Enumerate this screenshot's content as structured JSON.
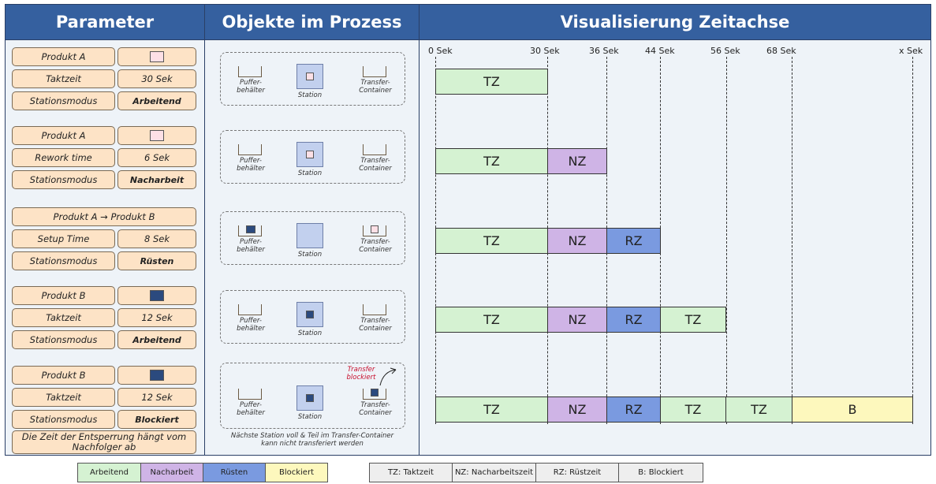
{
  "headers": {
    "parameter": "Parameter",
    "objects": "Objekte im Prozess",
    "timeline": "Visualisierung Zeitachse"
  },
  "parameters": [
    {
      "rows": [
        [
          "Produkt A",
          ""
        ],
        [
          "Taktzeit",
          "30 Sek"
        ],
        [
          "Stationsmodus",
          "Arbeitend"
        ]
      ]
    },
    {
      "rows": [
        [
          "Produkt A",
          ""
        ],
        [
          "Rework time",
          "6 Sek"
        ],
        [
          "Stationsmodus",
          "Nacharbeit"
        ]
      ]
    },
    {
      "rows": [
        [
          "Produkt A → Produkt B"
        ],
        [
          "Setup Time",
          "8 Sek"
        ],
        [
          "Stationsmodus",
          "Rüsten"
        ]
      ]
    },
    {
      "rows": [
        [
          "Produkt B",
          ""
        ],
        [
          "Taktzeit",
          "12 Sek"
        ],
        [
          "Stationsmodus",
          "Arbeitend"
        ]
      ]
    },
    {
      "rows": [
        [
          "Produkt B",
          ""
        ],
        [
          "Taktzeit",
          "12 Sek"
        ],
        [
          "Stationsmodus",
          "Blockiert"
        ]
      ],
      "note": "Die Zeit der Entsperrung hängt vom Nachfolger ab"
    }
  ],
  "objects": {
    "buffer_label_1": "Puffer-",
    "buffer_label_2": "behälter",
    "station_label": "Station",
    "transfer_label_1": "Transfer-",
    "transfer_label_2": "Container",
    "blocked_label_1": "Transfer",
    "blocked_label_2": "blockiert",
    "note_1": "Nächste Station voll & Teil im Transfer-Container",
    "note_2": "kann nicht transferiert werden"
  },
  "timeline": {
    "ticks": [
      "0 Sek",
      "30 Sek",
      "36 Sek",
      "44 Sek",
      "56 Sek",
      "68 Sek",
      "x Sek"
    ],
    "rows": [
      [
        {
          "label": "TZ",
          "type": "work"
        }
      ],
      [
        {
          "label": "TZ",
          "type": "work"
        },
        {
          "label": "NZ",
          "type": "rework"
        }
      ],
      [
        {
          "label": "TZ",
          "type": "work"
        },
        {
          "label": "NZ",
          "type": "rework"
        },
        {
          "label": "RZ",
          "type": "setup"
        }
      ],
      [
        {
          "label": "TZ",
          "type": "work"
        },
        {
          "label": "NZ",
          "type": "rework"
        },
        {
          "label": "RZ",
          "type": "setup"
        },
        {
          "label": "TZ",
          "type": "work"
        }
      ],
      [
        {
          "label": "TZ",
          "type": "work"
        },
        {
          "label": "NZ",
          "type": "rework"
        },
        {
          "label": "RZ",
          "type": "setup"
        },
        {
          "label": "TZ",
          "type": "work"
        },
        {
          "label": "TZ",
          "type": "work"
        },
        {
          "label": "B",
          "type": "blocked"
        }
      ]
    ]
  },
  "legend_colors": [
    {
      "label": "Arbeitend",
      "color": "#d5f2d2"
    },
    {
      "label": "Nacharbeit",
      "color": "#cfb4e6"
    },
    {
      "label": "Rüsten",
      "color": "#7a9ae0"
    },
    {
      "label": "Blockiert",
      "color": "#fdf8bd"
    }
  ],
  "legend_abbrev": [
    "TZ: Taktzeit",
    "NZ: Nacharbeitszeit",
    "RZ: Rüstzeit",
    "B: Blockiert"
  ],
  "colors": {
    "product_a": "#fde0e6",
    "product_b": "#2b4a7e",
    "work": "#d5f2d2",
    "rework": "#cfb4e6",
    "setup": "#7a9ae0",
    "blocked": "#fdf8bd"
  }
}
